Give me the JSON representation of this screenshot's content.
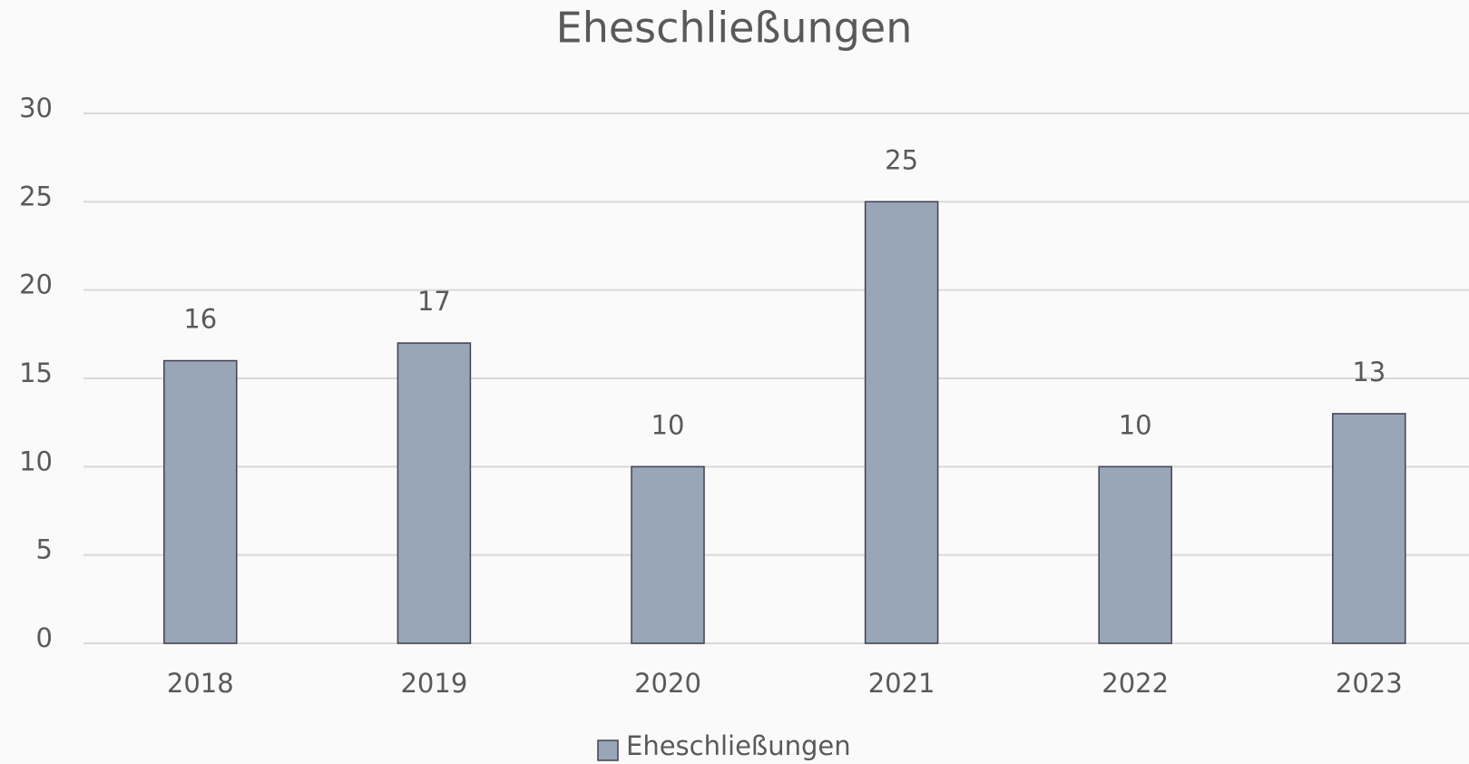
{
  "chart_data": {
    "type": "bar",
    "title": "Eheschließungen",
    "categories": [
      "2018",
      "2019",
      "2020",
      "2021",
      "2022",
      "2023"
    ],
    "series": [
      {
        "name": "Eheschließungen",
        "color": "#98a6b8",
        "values": [
          16,
          17,
          10,
          25,
          10,
          13
        ]
      }
    ],
    "ylim": [
      0,
      30
    ],
    "yticks": [
      0,
      5,
      10,
      15,
      20,
      25,
      30
    ],
    "grid": true,
    "legend": "bottom"
  }
}
